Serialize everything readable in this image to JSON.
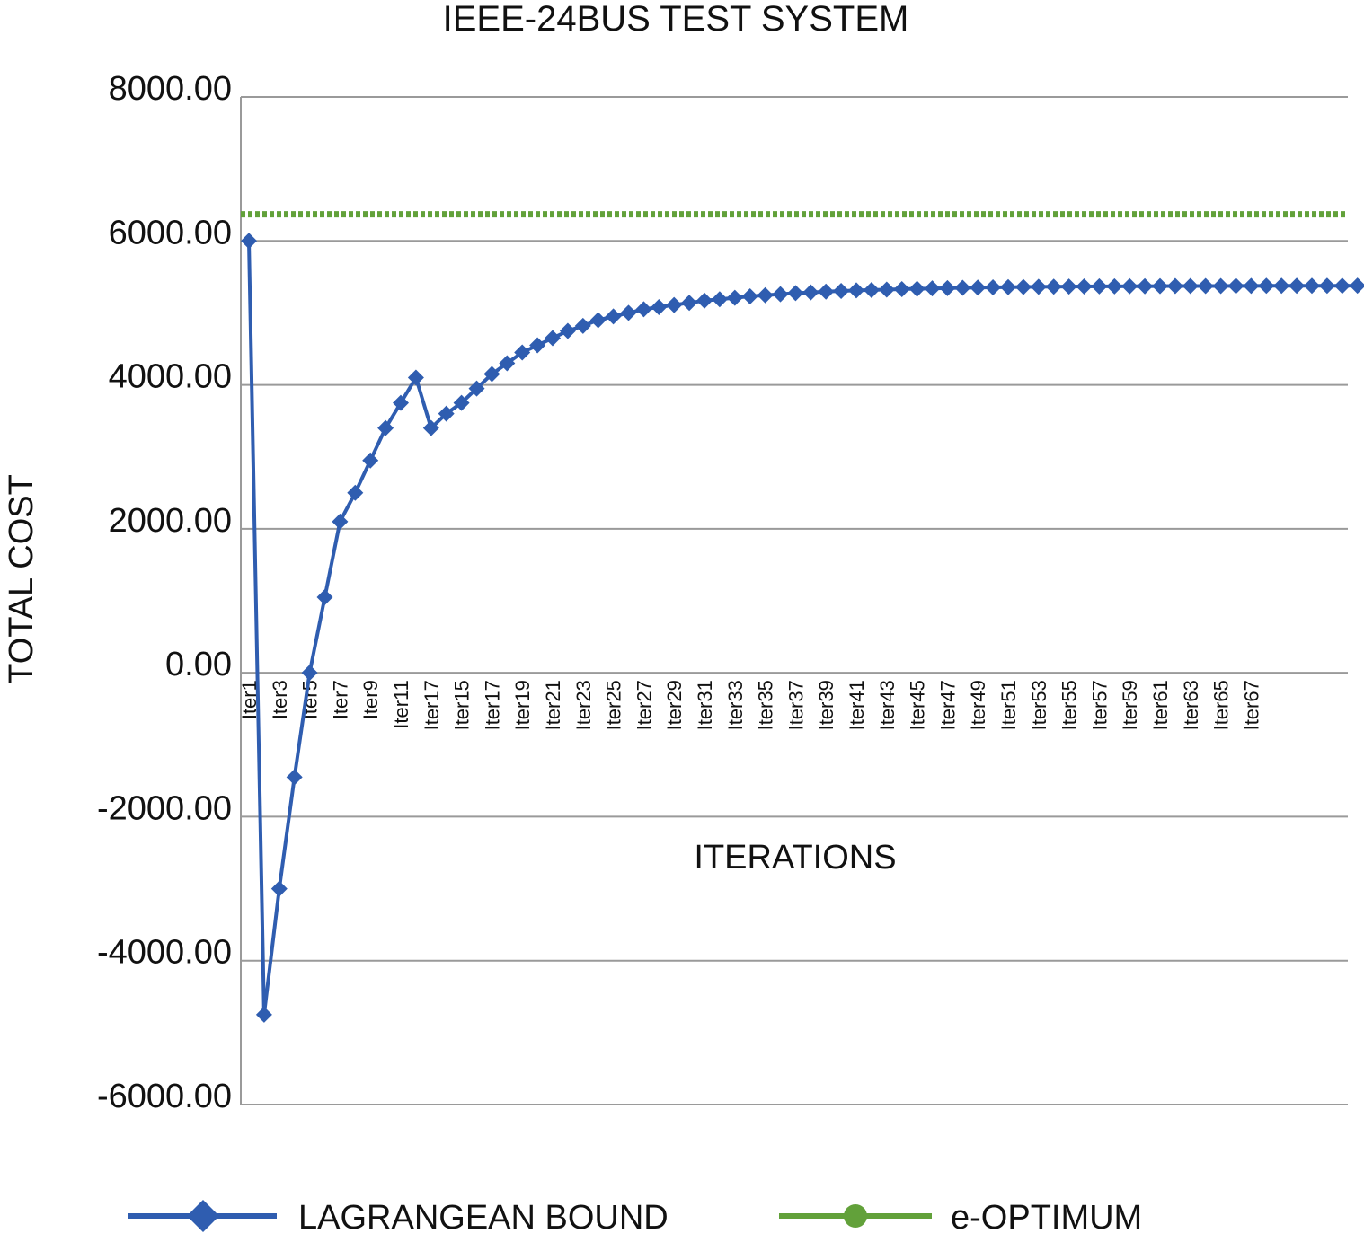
{
  "chart_data": {
    "type": "line",
    "title": "IEEE-24BUS TEST SYSTEM",
    "xlabel": "ITERATIONS",
    "ylabel": "TOTAL COST",
    "ylim": [
      -6000,
      8000
    ],
    "y_ticks": [
      "8000.00",
      "6000.00",
      "4000.00",
      "2000.00",
      "0.00",
      "-2000.00",
      "-4000.00",
      "-6000.00"
    ],
    "grid": true,
    "legend_position": "bottom",
    "x_tick_labels": [
      "Iter1",
      "Iter3",
      "Iter5",
      "Iter7",
      "Iter9",
      "Iter11",
      "Iter17",
      "Iter15",
      "Iter17",
      "Iter19",
      "Iter21",
      "Iter23",
      "Iter25",
      "Iter27",
      "Iter29",
      "Iter31",
      "Iter33",
      "Iter35",
      "Iter37",
      "Iter39",
      "Iter41",
      "Iter43",
      "Iter45",
      "Iter47",
      "Iter49",
      "Iter51",
      "Iter53",
      "Iter55",
      "Iter57",
      "Iter59",
      "Iter61",
      "Iter63",
      "Iter65",
      "Iter67"
    ],
    "series": [
      {
        "name": "LAGRANGEAN BOUND",
        "color": "#2f5db0",
        "marker": "diamond",
        "values": [
          6000,
          -4750,
          -3000,
          -1450,
          0,
          1050,
          2100,
          2500,
          2950,
          3400,
          3750,
          4100,
          3400,
          3600,
          3750,
          3950,
          4150,
          4300,
          4450,
          4550,
          4650,
          4750,
          4820,
          4900,
          4950,
          5000,
          5050,
          5080,
          5110,
          5140,
          5170,
          5190,
          5210,
          5230,
          5245,
          5260,
          5275,
          5285,
          5295,
          5305,
          5312,
          5318,
          5324,
          5330,
          5335,
          5340,
          5344,
          5348,
          5352,
          5355,
          5358,
          5360,
          5362,
          5364,
          5366,
          5367,
          5368,
          5369,
          5370,
          5371,
          5372,
          5373,
          5373,
          5374,
          5374,
          5375,
          5375,
          5376,
          5376,
          5376,
          5377,
          5377,
          5377,
          5378
        ]
      },
      {
        "name": "e-OPTIMUM",
        "color": "#62a13a",
        "marker": "circle",
        "constant": 6370
      }
    ]
  }
}
